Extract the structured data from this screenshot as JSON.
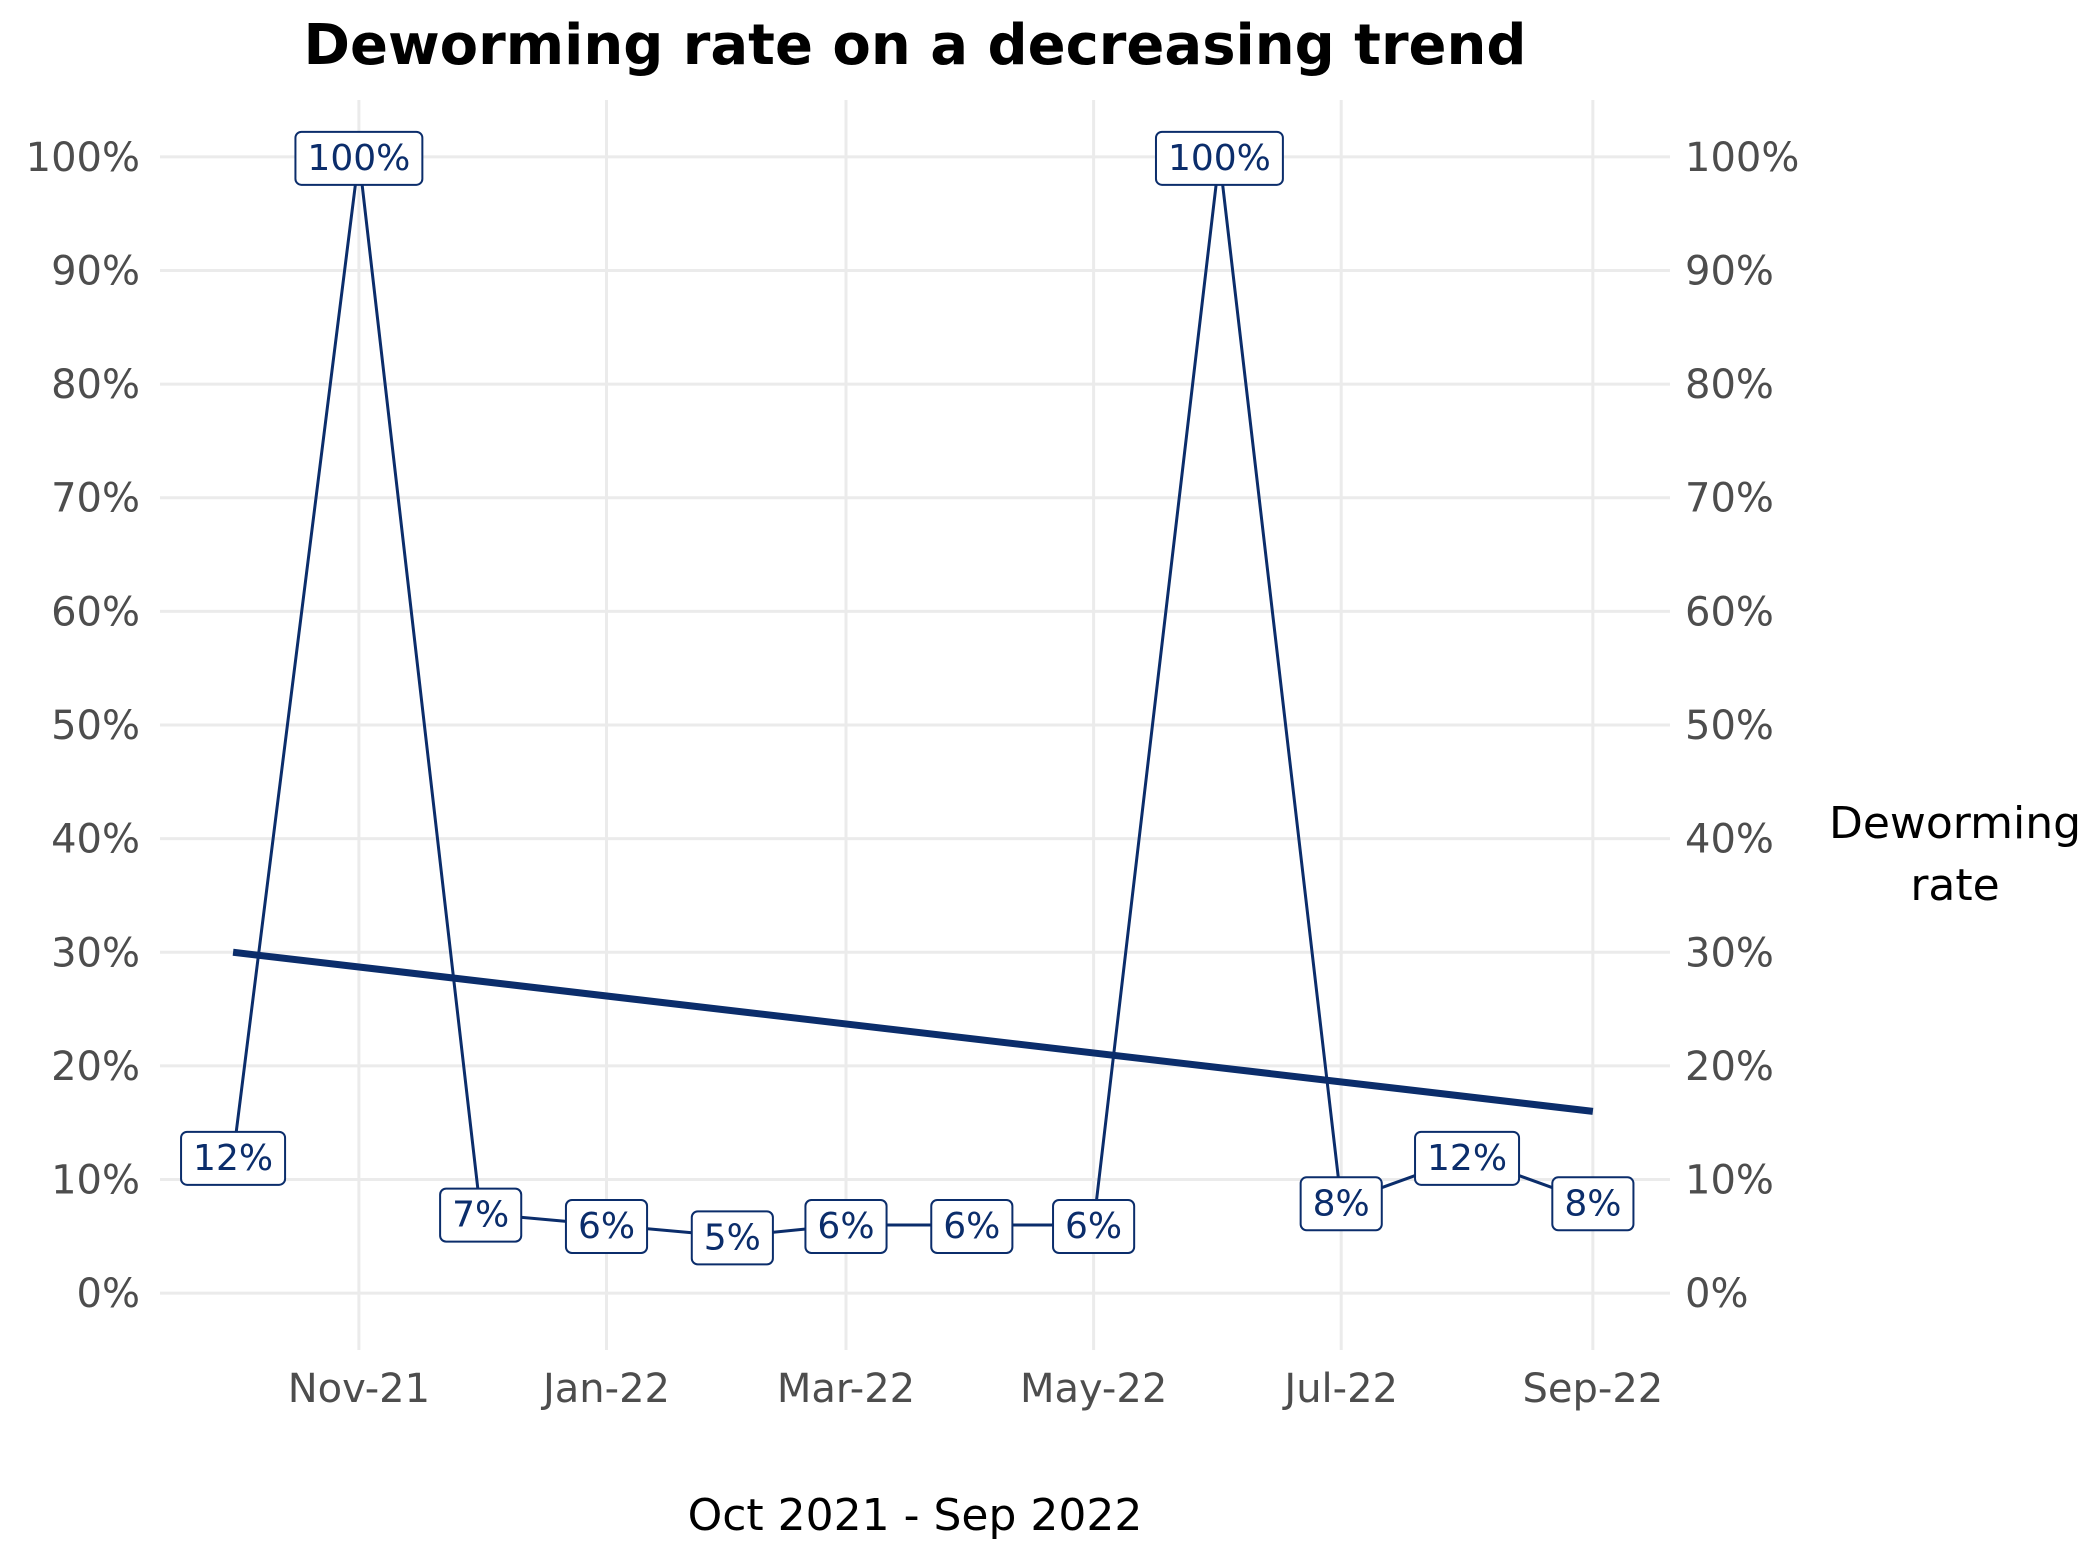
{
  "title": "Deworming rate on a decreasing trend",
  "xlabel": "Oct 2021 - Sep 2022",
  "y2label_lines": [
    "Deworming",
    "rate"
  ],
  "colors": {
    "series": "#0b2d6b",
    "grid": "#ebebeb",
    "tick_text": "#4d4d4d",
    "label_bg": "#ffffff"
  },
  "chart_data": {
    "type": "line",
    "title": "Deworming rate on a decreasing trend",
    "xlabel": "Oct 2021 - Sep 2022",
    "ylabel_right": "Deworming rate",
    "x_tick_labels": [
      "Nov-21",
      "Jan-22",
      "Mar-22",
      "May-22",
      "Jul-22",
      "Sep-22"
    ],
    "x_tick_dates": [
      "2021-11-01",
      "2022-01-01",
      "2022-03-01",
      "2022-05-01",
      "2022-07-01",
      "2022-09-01"
    ],
    "xlim": [
      "2021-09-13",
      "2022-09-20"
    ],
    "y_tick_labels": [
      "0%",
      "10%",
      "20%",
      "30%",
      "40%",
      "50%",
      "60%",
      "70%",
      "80%",
      "90%",
      "100%"
    ],
    "ylim": [
      -0.05,
      1.05
    ],
    "y_axis_both_sides": true,
    "grid": true,
    "series": [
      {
        "x": [
          "2021-10-01",
          "2021-11-01",
          "2021-12-01",
          "2022-01-01",
          "2022-02-01",
          "2022-03-01",
          "2022-04-01",
          "2022-05-01",
          "2022-06-01",
          "2022-07-01",
          "2022-08-01",
          "2022-09-01"
        ],
        "values": [
          0.12,
          1.0,
          0.07,
          0.06,
          0.05,
          0.06,
          0.06,
          0.06,
          1.0,
          0.08,
          0.12,
          0.08
        ],
        "labels": [
          "12%",
          "100%",
          "7%",
          "6%",
          "5%",
          "6%",
          "6%",
          "6%",
          "100%",
          "8%",
          "12%",
          "8%"
        ]
      }
    ],
    "trend_line": {
      "x": [
        "2021-10-01",
        "2022-09-01"
      ],
      "values": [
        0.3,
        0.16
      ]
    }
  }
}
